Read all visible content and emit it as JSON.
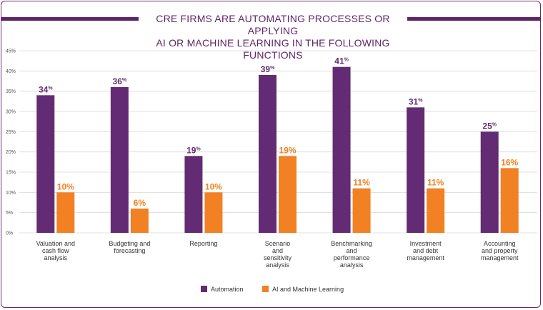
{
  "title_lines": [
    "CRE FIRMS ARE AUTOMATING PROCESSES OR APPLYING",
    "AI OR MACHINE LEARNING IN THE FOLLOWING FUNCTIONS"
  ],
  "colors": {
    "automation": "#632b73",
    "ai_ml": "#f28123",
    "title": "#5f2468",
    "grid": "#d8d8d8"
  },
  "chart_data": {
    "type": "bar",
    "title": "CRE FIRMS ARE AUTOMATING PROCESSES OR APPLYING AI OR MACHINE LEARNING IN THE FOLLOWING FUNCTIONS",
    "categories": [
      "Valuation and cash flow analysis",
      "Budgeting and forecasting",
      "Reporting",
      "Scenario and sensitivity analysis",
      "Benchmarking and performance analysis",
      "Investment and debt management",
      "Accounting and property management"
    ],
    "category_lines": [
      [
        "Valuation and",
        "cash flow",
        "analysis"
      ],
      [
        "Budgeting and",
        "forecasting"
      ],
      [
        "Reporting"
      ],
      [
        "Scenario",
        "and",
        "sensitivity",
        "analysis"
      ],
      [
        "Benchmarking",
        "and",
        "performance",
        "analysis"
      ],
      [
        "Investment",
        "and debt",
        "management"
      ],
      [
        "Accounting",
        "and property",
        "management"
      ]
    ],
    "series": [
      {
        "name": "Automation",
        "values": [
          34,
          36,
          19,
          39,
          41,
          31,
          25
        ]
      },
      {
        "name": "AI and Machine Learning",
        "values": [
          10,
          6,
          10,
          19,
          11,
          11,
          16
        ]
      }
    ],
    "y_ticks": [
      "0%",
      "5%",
      "10%",
      "15%",
      "20%",
      "25%",
      "30%",
      "35%",
      "40%",
      "45%"
    ],
    "ylim": [
      0,
      45
    ],
    "grid": true,
    "legend_position": "bottom-center",
    "value_suffix": "%"
  }
}
